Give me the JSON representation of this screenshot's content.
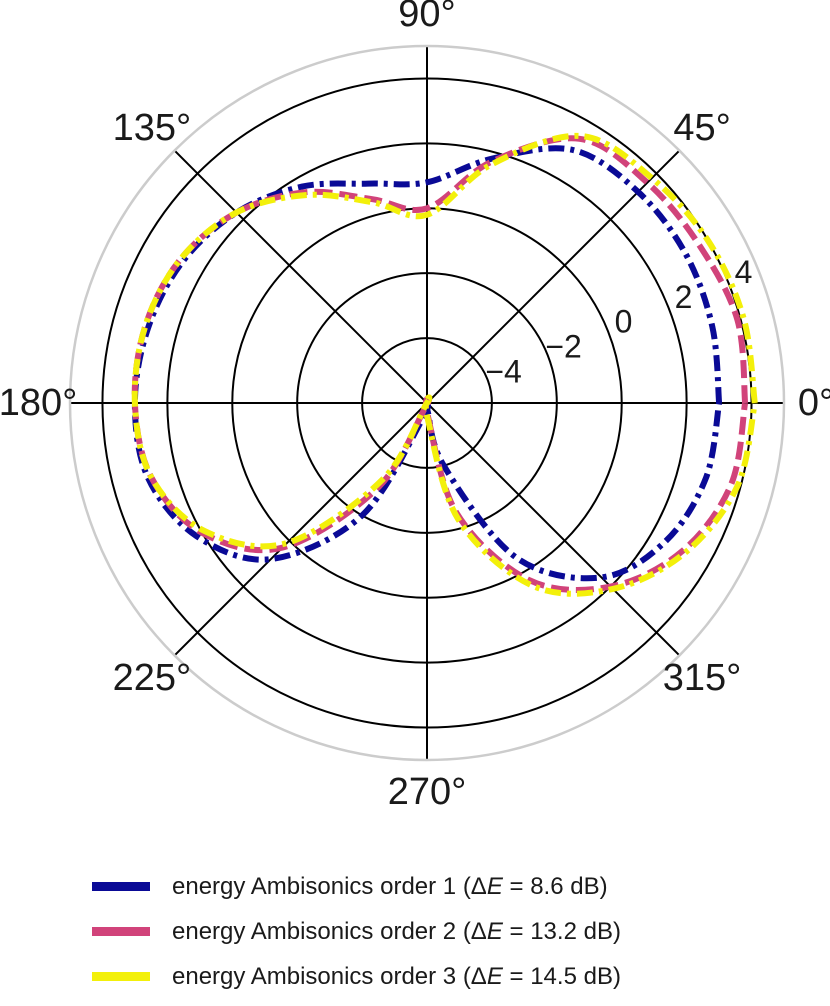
{
  "chart_data": {
    "type": "polar-line",
    "angular_ticks": [
      "0°",
      "45°",
      "90°",
      "135°",
      "180°",
      "225°",
      "270°",
      "315°"
    ],
    "radial_ticks": [
      -4,
      -2,
      0,
      2,
      4
    ],
    "rlim": [
      -6,
      5
    ],
    "grid": true,
    "legend_position": "bottom",
    "series": [
      {
        "name": "energy Ambisonics order 1 (ΔE = 8.6 dB)",
        "label_prefix": "energy Ambisonics order 1 (Δ",
        "label_var": "E",
        "label_suffix": " = 8.6 dB)",
        "color": "#0a0a96",
        "dash": "dashdot",
        "angles_deg": [
          0,
          15,
          30,
          45,
          60,
          75,
          90,
          105,
          120,
          135,
          150,
          165,
          180,
          195,
          210,
          225,
          240,
          255,
          270,
          285,
          300,
          315,
          330,
          345,
          360
        ],
        "values": [
          3.0,
          3.1,
          3.2,
          3.2,
          3.0,
          1.8,
          0.8,
          1.0,
          1.7,
          2.3,
          2.7,
          2.9,
          3.0,
          2.9,
          2.2,
          0.8,
          -2.0,
          -5.5,
          -5.8,
          -4.0,
          -0.5,
          1.6,
          2.5,
          2.9,
          3.0
        ]
      },
      {
        "name": "energy Ambisonics order 2 (ΔE = 13.2 dB)",
        "label_prefix": "energy Ambisonics order 2 (Δ",
        "label_var": "E",
        "label_suffix": " = 13.2 dB)",
        "color": "#d1437a",
        "dash": "dashed",
        "angles_deg": [
          0,
          15,
          30,
          45,
          60,
          75,
          90,
          105,
          120,
          135,
          150,
          165,
          180,
          195,
          210,
          225,
          240,
          255,
          270,
          285,
          300,
          315,
          330,
          345,
          360
        ],
        "values": [
          3.8,
          3.9,
          3.7,
          3.6,
          3.4,
          1.7,
          0.0,
          0.5,
          1.5,
          2.3,
          2.8,
          3.0,
          3.0,
          2.8,
          2.0,
          0.3,
          -3.0,
          -5.9,
          -5.7,
          -2.5,
          0.3,
          2.0,
          3.1,
          3.7,
          3.8
        ]
      },
      {
        "name": "energy Ambisonics order 3 (ΔE = 14.5 dB)",
        "label_prefix": "energy Ambisonics order 3 (Δ",
        "label_var": "E",
        "label_suffix": " = 14.5 dB)",
        "color": "#f3f00a",
        "dash": "dashdot",
        "angles_deg": [
          0,
          15,
          30,
          45,
          60,
          75,
          90,
          105,
          120,
          135,
          150,
          165,
          180,
          195,
          210,
          225,
          240,
          255,
          270,
          285,
          300,
          315,
          330,
          345,
          360
        ],
        "values": [
          4.1,
          4.1,
          4.0,
          3.8,
          3.5,
          1.6,
          -0.2,
          0.4,
          1.4,
          2.3,
          2.8,
          3.0,
          3.0,
          2.8,
          1.9,
          0.1,
          -3.3,
          -6.0,
          -5.6,
          -2.3,
          0.5,
          2.1,
          3.2,
          3.9,
          4.1
        ]
      }
    ]
  }
}
